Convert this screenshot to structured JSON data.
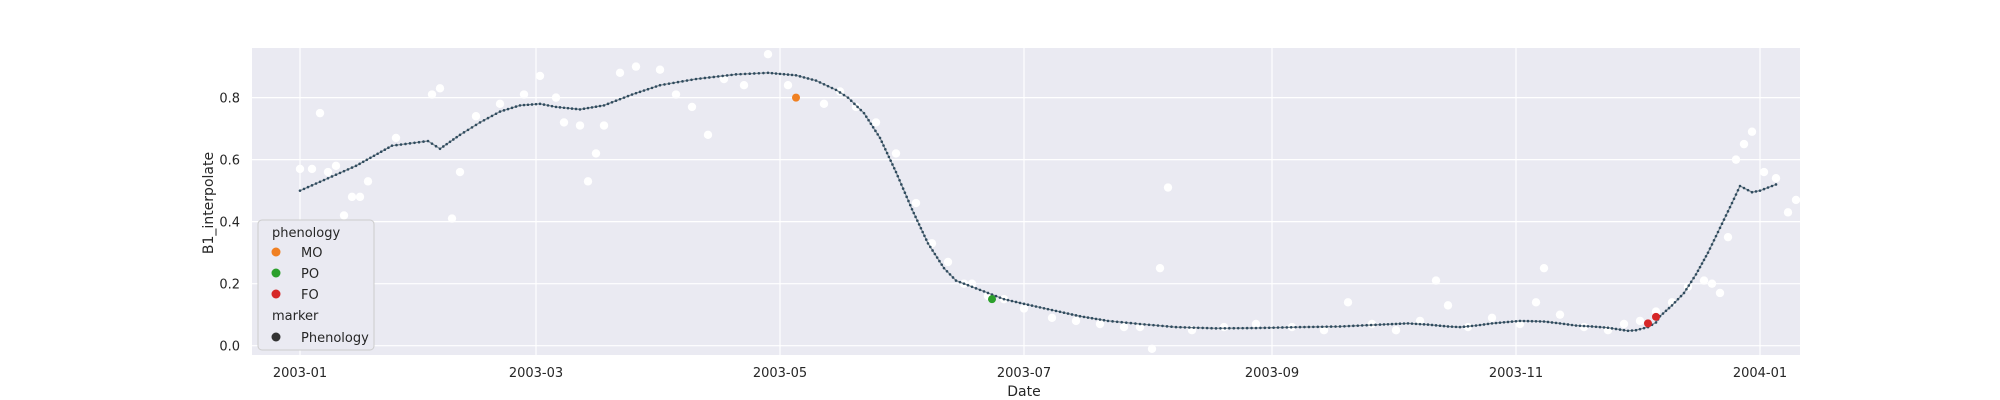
{
  "chart_data": {
    "type": "scatter",
    "xlabel": "Date",
    "ylabel": "B1_interpolate",
    "xlim": [
      "2002-12-20",
      "2004-01-11"
    ],
    "ylim": [
      -0.03,
      0.96
    ],
    "x_ticks": [
      {
        "date": "2003-01-01",
        "label": "2003-01"
      },
      {
        "date": "2003-03-01",
        "label": "2003-03"
      },
      {
        "date": "2003-05-01",
        "label": "2003-05"
      },
      {
        "date": "2003-07-01",
        "label": "2003-07"
      },
      {
        "date": "2003-09-01",
        "label": "2003-09"
      },
      {
        "date": "2003-11-01",
        "label": "2003-11"
      },
      {
        "date": "2004-01-01",
        "label": "2004-01"
      }
    ],
    "y_ticks": [
      0.0,
      0.2,
      0.4,
      0.6,
      0.8
    ],
    "grid": true,
    "colors": {
      "background": "#eaeaf2",
      "grid": "#ffffff",
      "observations": "#ffffff",
      "curve": "#2f4b5e",
      "curve_line": "#7f8c95",
      "MO": "#f08022",
      "PO": "#2ca02c",
      "FO": "#d62728",
      "marker": "#333333"
    },
    "legend": {
      "placement": "lower-left",
      "title_1": "phenology",
      "entries": [
        {
          "label": "MO",
          "color_key": "MO"
        },
        {
          "label": "PO",
          "color_key": "PO"
        },
        {
          "label": "FO",
          "color_key": "FO"
        }
      ],
      "title_2": "marker",
      "marker_entries": [
        {
          "label": "Phenology",
          "color_key": "marker"
        }
      ]
    },
    "curve": [
      [
        "2003-01-01",
        0.5
      ],
      [
        "2003-01-08",
        0.54
      ],
      [
        "2003-01-15",
        0.58
      ],
      [
        "2003-01-24",
        0.645
      ],
      [
        "2003-02-02",
        0.66
      ],
      [
        "2003-02-05",
        0.635
      ],
      [
        "2003-02-10",
        0.68
      ],
      [
        "2003-02-15",
        0.72
      ],
      [
        "2003-02-20",
        0.755
      ],
      [
        "2003-02-25",
        0.775
      ],
      [
        "2003-03-02",
        0.78
      ],
      [
        "2003-03-06",
        0.77
      ],
      [
        "2003-03-12",
        0.762
      ],
      [
        "2003-03-18",
        0.775
      ],
      [
        "2003-03-25",
        0.81
      ],
      [
        "2003-04-01",
        0.84
      ],
      [
        "2003-04-10",
        0.86
      ],
      [
        "2003-04-20",
        0.875
      ],
      [
        "2003-04-28",
        0.88
      ],
      [
        "2003-05-05",
        0.872
      ],
      [
        "2003-05-10",
        0.855
      ],
      [
        "2003-05-15",
        0.825
      ],
      [
        "2003-05-18",
        0.8
      ],
      [
        "2003-05-22",
        0.75
      ],
      [
        "2003-05-26",
        0.67
      ],
      [
        "2003-05-30",
        0.56
      ],
      [
        "2003-06-03",
        0.44
      ],
      [
        "2003-06-07",
        0.33
      ],
      [
        "2003-06-11",
        0.25
      ],
      [
        "2003-06-14",
        0.21
      ],
      [
        "2003-06-18",
        0.19
      ],
      [
        "2003-06-22",
        0.17
      ],
      [
        "2003-06-26",
        0.15
      ],
      [
        "2003-07-01",
        0.135
      ],
      [
        "2003-07-08",
        0.115
      ],
      [
        "2003-07-15",
        0.095
      ],
      [
        "2003-07-22",
        0.08
      ],
      [
        "2003-07-30",
        0.07
      ],
      [
        "2003-08-08",
        0.06
      ],
      [
        "2003-08-18",
        0.056
      ],
      [
        "2003-08-28",
        0.057
      ],
      [
        "2003-09-08",
        0.06
      ],
      [
        "2003-09-18",
        0.062
      ],
      [
        "2003-09-28",
        0.068
      ],
      [
        "2003-10-05",
        0.072
      ],
      [
        "2003-10-10",
        0.068
      ],
      [
        "2003-10-15",
        0.062
      ],
      [
        "2003-10-18",
        0.06
      ],
      [
        "2003-10-22",
        0.065
      ],
      [
        "2003-10-26",
        0.072
      ],
      [
        "2003-11-02",
        0.08
      ],
      [
        "2003-11-08",
        0.078
      ],
      [
        "2003-11-12",
        0.072
      ],
      [
        "2003-11-16",
        0.065
      ],
      [
        "2003-11-20",
        0.062
      ],
      [
        "2003-11-24",
        0.058
      ],
      [
        "2003-11-27",
        0.052
      ],
      [
        "2003-11-29",
        0.048
      ],
      [
        "2003-12-01",
        0.05
      ],
      [
        "2003-12-04",
        0.06
      ],
      [
        "2003-12-06",
        0.075
      ],
      [
        "2003-12-07",
        0.095
      ],
      [
        "2003-12-10",
        0.13
      ],
      [
        "2003-12-13",
        0.17
      ],
      [
        "2003-12-16",
        0.23
      ],
      [
        "2003-12-19",
        0.3
      ],
      [
        "2003-12-22",
        0.38
      ],
      [
        "2003-12-25",
        0.46
      ],
      [
        "2003-12-27",
        0.515
      ],
      [
        "2003-12-30",
        0.495
      ],
      [
        "2004-01-01",
        0.5
      ],
      [
        "2004-01-05",
        0.52
      ]
    ],
    "observations": [
      [
        "2003-01-01",
        0.57
      ],
      [
        "2003-01-04",
        0.57
      ],
      [
        "2003-01-06",
        0.75
      ],
      [
        "2003-01-08",
        0.56
      ],
      [
        "2003-01-10",
        0.58
      ],
      [
        "2003-01-12",
        0.42
      ],
      [
        "2003-01-14",
        0.48
      ],
      [
        "2003-01-16",
        0.48
      ],
      [
        "2003-01-18",
        0.53
      ],
      [
        "2003-01-25",
        0.67
      ],
      [
        "2003-02-03",
        0.81
      ],
      [
        "2003-02-05",
        0.83
      ],
      [
        "2003-02-08",
        0.41
      ],
      [
        "2003-02-10",
        0.56
      ],
      [
        "2003-02-14",
        0.74
      ],
      [
        "2003-02-20",
        0.78
      ],
      [
        "2003-02-26",
        0.81
      ],
      [
        "2003-03-02",
        0.87
      ],
      [
        "2003-03-06",
        0.8
      ],
      [
        "2003-03-08",
        0.72
      ],
      [
        "2003-03-12",
        0.71
      ],
      [
        "2003-03-14",
        0.53
      ],
      [
        "2003-03-16",
        0.62
      ],
      [
        "2003-03-18",
        0.71
      ],
      [
        "2003-03-22",
        0.88
      ],
      [
        "2003-03-26",
        0.9
      ],
      [
        "2003-04-01",
        0.89
      ],
      [
        "2003-04-05",
        0.81
      ],
      [
        "2003-04-09",
        0.77
      ],
      [
        "2003-04-13",
        0.68
      ],
      [
        "2003-04-17",
        0.86
      ],
      [
        "2003-04-22",
        0.84
      ],
      [
        "2003-04-28",
        0.94
      ],
      [
        "2003-05-03",
        0.84
      ],
      [
        "2003-05-12",
        0.78
      ],
      [
        "2003-05-16",
        0.82
      ],
      [
        "2003-05-20",
        0.77
      ],
      [
        "2003-05-25",
        0.72
      ],
      [
        "2003-05-30",
        0.62
      ],
      [
        "2003-06-04",
        0.46
      ],
      [
        "2003-06-08",
        0.33
      ],
      [
        "2003-06-12",
        0.27
      ],
      [
        "2003-06-16",
        0.2
      ],
      [
        "2003-06-18",
        0.2
      ],
      [
        "2003-06-22",
        0.16
      ],
      [
        "2003-06-26",
        0.15
      ],
      [
        "2003-07-01",
        0.12
      ],
      [
        "2003-07-08",
        0.09
      ],
      [
        "2003-07-14",
        0.08
      ],
      [
        "2003-07-20",
        0.07
      ],
      [
        "2003-07-26",
        0.06
      ],
      [
        "2003-07-30",
        0.06
      ],
      [
        "2003-08-02",
        -0.01
      ],
      [
        "2003-08-04",
        0.25
      ],
      [
        "2003-08-06",
        0.51
      ],
      [
        "2003-08-12",
        0.05
      ],
      [
        "2003-08-20",
        0.06
      ],
      [
        "2003-08-28",
        0.07
      ],
      [
        "2003-09-06",
        0.06
      ],
      [
        "2003-09-14",
        0.05
      ],
      [
        "2003-09-20",
        0.14
      ],
      [
        "2003-09-26",
        0.07
      ],
      [
        "2003-10-02",
        0.05
      ],
      [
        "2003-10-08",
        0.08
      ],
      [
        "2003-10-12",
        0.21
      ],
      [
        "2003-10-15",
        0.13
      ],
      [
        "2003-10-20",
        0.06
      ],
      [
        "2003-10-26",
        0.09
      ],
      [
        "2003-11-02",
        0.07
      ],
      [
        "2003-11-06",
        0.14
      ],
      [
        "2003-11-08",
        0.25
      ],
      [
        "2003-11-12",
        0.1
      ],
      [
        "2003-11-18",
        0.06
      ],
      [
        "2003-11-24",
        0.05
      ],
      [
        "2003-11-28",
        0.07
      ],
      [
        "2003-12-02",
        0.08
      ],
      [
        "2003-12-06",
        0.11
      ],
      [
        "2003-12-10",
        0.14
      ],
      [
        "2003-12-14",
        0.19
      ],
      [
        "2003-12-18",
        0.21
      ],
      [
        "2003-12-20",
        0.2
      ],
      [
        "2003-12-22",
        0.17
      ],
      [
        "2003-12-24",
        0.35
      ],
      [
        "2003-12-26",
        0.6
      ],
      [
        "2003-12-28",
        0.65
      ],
      [
        "2003-12-30",
        0.69
      ],
      [
        "2004-01-02",
        0.56
      ],
      [
        "2004-01-05",
        0.54
      ],
      [
        "2004-01-08",
        0.43
      ],
      [
        "2004-01-10",
        0.47
      ]
    ],
    "phenology_points": [
      {
        "phase": "MO",
        "date": "2003-05-05",
        "value": 0.8
      },
      {
        "phase": "PO",
        "date": "2003-06-23",
        "value": 0.15
      },
      {
        "phase": "FO",
        "date": "2003-12-04",
        "value": 0.072
      },
      {
        "phase": "FO",
        "date": "2003-12-06",
        "value": 0.093
      }
    ]
  }
}
